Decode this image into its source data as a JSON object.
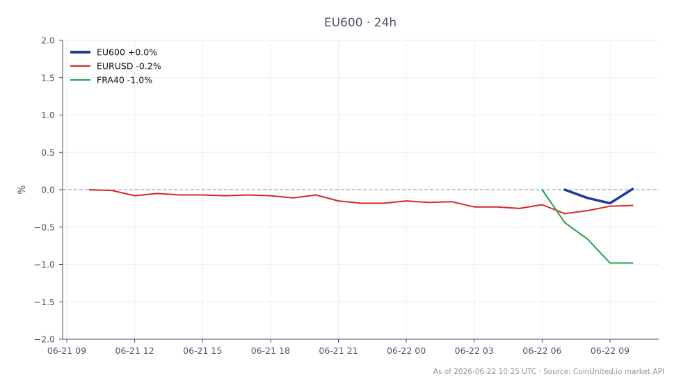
{
  "chart_data": {
    "type": "line",
    "title": "EU600 · 24h",
    "xlabel": "",
    "ylabel": "%",
    "ylim": [
      -2.0,
      2.0
    ],
    "yticks": [
      "2.0",
      "1.5",
      "1.0",
      "0.5",
      "0.0",
      "−0.5",
      "−1.0",
      "−1.5",
      "−2.0"
    ],
    "ytick_values": [
      2.0,
      1.5,
      1.0,
      0.5,
      0.0,
      -0.5,
      -1.0,
      -1.5,
      -2.0
    ],
    "xlim": [
      0,
      26
    ],
    "xticks": [
      "06-21 09",
      "06-21 12",
      "06-21 15",
      "06-21 18",
      "06-21 21",
      "06-22 00",
      "06-22 03",
      "06-22 06",
      "06-22 09"
    ],
    "xtick_values": [
      0,
      3,
      6,
      9,
      12,
      15,
      18,
      21,
      24
    ],
    "grid": true,
    "legend_position": "top-left",
    "reference_line": 0.0,
    "series": [
      {
        "name": "EU600 +0.0%",
        "color": "#1f3a9a",
        "x": [
          22,
          23,
          24,
          25
        ],
        "values": [
          0.0,
          -0.11,
          -0.18,
          0.01
        ]
      },
      {
        "name": "EURUSD -0.2%",
        "color": "#d62728",
        "x": [
          1,
          2,
          3,
          4,
          5,
          6,
          7,
          8,
          9,
          10,
          11,
          12,
          13,
          14,
          15,
          16,
          17,
          18,
          19,
          20,
          21,
          22,
          23,
          24,
          25
        ],
        "values": [
          0.0,
          -0.01,
          -0.08,
          -0.05,
          -0.07,
          -0.07,
          -0.08,
          -0.07,
          -0.08,
          -0.11,
          -0.07,
          -0.15,
          -0.18,
          -0.18,
          -0.15,
          -0.17,
          -0.16,
          -0.23,
          -0.23,
          -0.25,
          -0.2,
          -0.32,
          -0.28,
          -0.22,
          -0.21
        ]
      },
      {
        "name": "FRA40 -1.0%",
        "color": "#22a04b",
        "x": [
          21,
          22,
          23,
          24,
          25
        ],
        "values": [
          0.0,
          -0.44,
          -0.66,
          -0.98,
          -0.98
        ]
      }
    ],
    "footer": "As of 2026-06-22 10:25 UTC · Source: CoinUnited.io market API"
  }
}
